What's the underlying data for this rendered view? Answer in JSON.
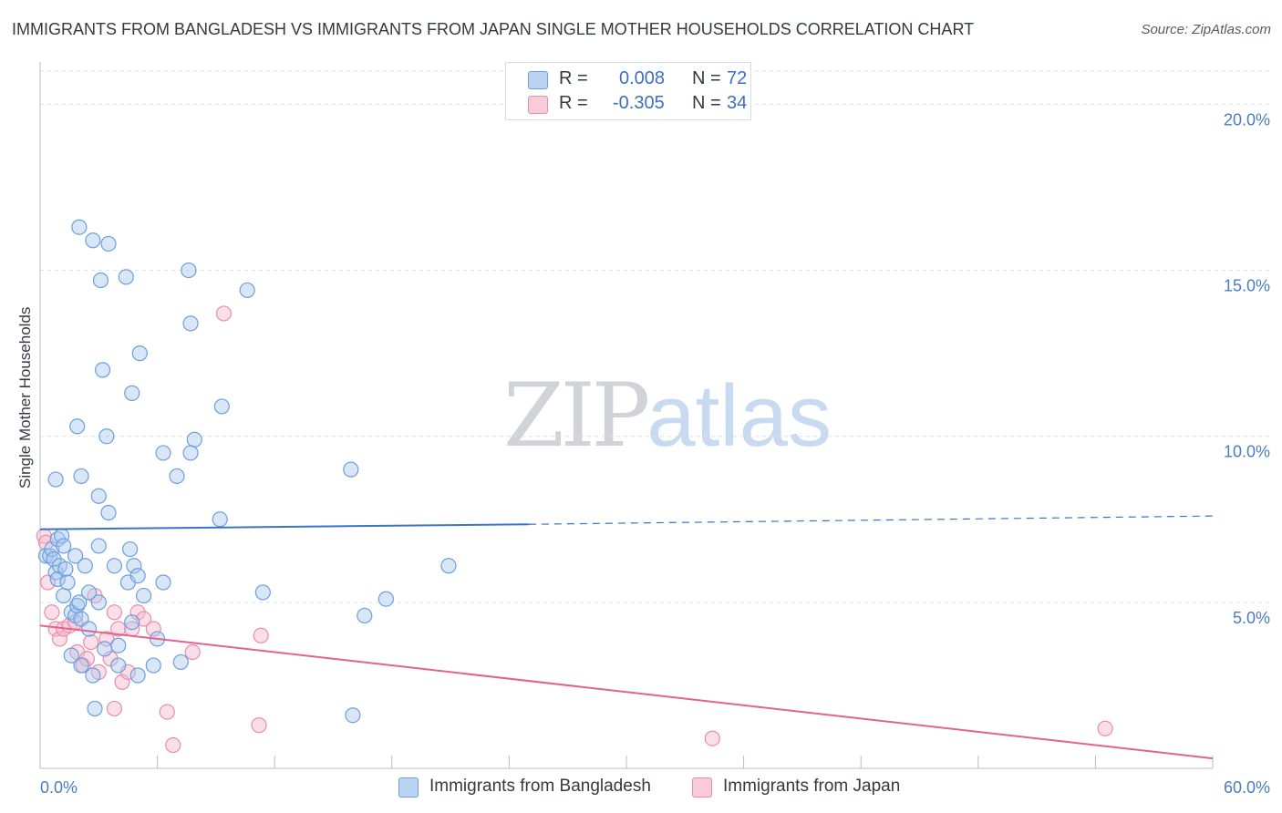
{
  "title": "IMMIGRANTS FROM BANGLADESH VS IMMIGRANTS FROM JAPAN SINGLE MOTHER HOUSEHOLDS CORRELATION CHART",
  "source": "Source: ZipAtlas.com",
  "watermark": {
    "zip": "ZIP",
    "atlas": "atlas"
  },
  "colors": {
    "bangladesh_fill": "#a9c8ef",
    "bangladesh_stroke": "#6d9fdc",
    "bangladesh_line": "#3a74c9",
    "japan_fill": "#f6b8cb",
    "japan_stroke": "#ec8cab",
    "japan_line": "#e4638e",
    "grid": "#dde0e5",
    "tick_text": "#4a7cc4"
  },
  "legend": {
    "rows": [
      {
        "r_label": "R =",
        "r_value": "0.008",
        "n_label": "N =",
        "n_value": "72"
      },
      {
        "r_label": "R =",
        "r_value": "-0.305",
        "n_label": "N =",
        "n_value": "34"
      }
    ]
  },
  "bottom_legend": {
    "bangladesh": "Immigrants from Bangladesh",
    "japan": "Immigrants from Japan"
  },
  "chart_data": {
    "type": "scatter",
    "title": "IMMIGRANTS FROM BANGLADESH VS IMMIGRANTS FROM JAPAN SINGLE MOTHER HOUSEHOLDS CORRELATION CHART",
    "xlabel": "",
    "ylabel": "Single Mother Households",
    "xlim": [
      0,
      60
    ],
    "ylim": [
      0,
      21
    ],
    "x_ticks": [
      0,
      6,
      12,
      18,
      24,
      30,
      36,
      42,
      48,
      54,
      60
    ],
    "x_tick_labels": [
      "0.0%",
      "60.0%"
    ],
    "y_ticks": [
      5,
      10,
      15,
      20
    ],
    "y_tick_labels": [
      "5.0%",
      "10.0%",
      "15.0%",
      "20.0%"
    ],
    "grid": true,
    "legend_position": "top-center",
    "series": [
      {
        "name": "Immigrants from Bangladesh",
        "R": 0.008,
        "N": 72,
        "trend": {
          "x0": 0,
          "y0": 7.2,
          "x1": 25,
          "y1": 7.35,
          "dashed_to_x": 60,
          "dashed_to_y": 7.6
        },
        "points": [
          [
            0.3,
            6.4
          ],
          [
            0.5,
            6.4
          ],
          [
            0.6,
            6.6
          ],
          [
            0.7,
            6.3
          ],
          [
            0.8,
            5.9
          ],
          [
            0.9,
            5.7
          ],
          [
            0.8,
            8.7
          ],
          [
            0.9,
            6.9
          ],
          [
            1.0,
            6.1
          ],
          [
            1.1,
            7.0
          ],
          [
            1.2,
            6.7
          ],
          [
            1.2,
            5.2
          ],
          [
            1.3,
            6.0
          ],
          [
            1.4,
            5.6
          ],
          [
            1.6,
            4.7
          ],
          [
            1.6,
            3.4
          ],
          [
            1.8,
            4.6
          ],
          [
            1.8,
            6.4
          ],
          [
            1.9,
            4.9
          ],
          [
            2.0,
            5.0
          ],
          [
            2.1,
            4.5
          ],
          [
            2.1,
            3.1
          ],
          [
            2.3,
            6.1
          ],
          [
            2.5,
            4.2
          ],
          [
            2.7,
            2.8
          ],
          [
            2.8,
            1.8
          ],
          [
            3.0,
            6.7
          ],
          [
            3.3,
            3.6
          ],
          [
            3.8,
            6.1
          ],
          [
            4.0,
            3.1
          ],
          [
            4.0,
            3.7
          ],
          [
            4.5,
            5.6
          ],
          [
            4.6,
            6.6
          ],
          [
            4.7,
            4.4
          ],
          [
            4.8,
            6.1
          ],
          [
            5.0,
            5.8
          ],
          [
            5.0,
            2.8
          ],
          [
            5.3,
            5.2
          ],
          [
            5.8,
            3.1
          ],
          [
            6.0,
            3.9
          ],
          [
            6.3,
            5.6
          ],
          [
            2.0,
            16.3
          ],
          [
            2.7,
            15.9
          ],
          [
            3.5,
            15.8
          ],
          [
            3.1,
            14.7
          ],
          [
            4.4,
            14.8
          ],
          [
            7.6,
            15.0
          ],
          [
            10.6,
            14.4
          ],
          [
            7.7,
            13.4
          ],
          [
            5.1,
            12.5
          ],
          [
            3.2,
            12.0
          ],
          [
            4.7,
            11.3
          ],
          [
            9.3,
            10.9
          ],
          [
            1.9,
            10.3
          ],
          [
            3.4,
            10.0
          ],
          [
            7.9,
            9.9
          ],
          [
            6.3,
            9.5
          ],
          [
            7.7,
            9.5
          ],
          [
            7.0,
            8.8
          ],
          [
            2.1,
            8.8
          ],
          [
            3.0,
            8.2
          ],
          [
            3.5,
            7.7
          ],
          [
            9.2,
            7.5
          ],
          [
            15.9,
            9.0
          ],
          [
            11.4,
            5.3
          ],
          [
            17.7,
            5.1
          ],
          [
            16.6,
            4.6
          ],
          [
            20.9,
            6.1
          ],
          [
            16.0,
            1.6
          ],
          [
            7.2,
            3.2
          ],
          [
            3.0,
            5.0
          ],
          [
            2.5,
            5.3
          ]
        ]
      },
      {
        "name": "Immigrants from Japan",
        "R": -0.305,
        "N": 34,
        "trend": {
          "x0": 0,
          "y0": 4.3,
          "x1": 60,
          "y1": 0.3
        },
        "points": [
          [
            0.2,
            7.0
          ],
          [
            0.3,
            6.8
          ],
          [
            0.4,
            5.6
          ],
          [
            0.6,
            4.7
          ],
          [
            0.8,
            4.2
          ],
          [
            1.0,
            3.9
          ],
          [
            1.2,
            4.2
          ],
          [
            1.5,
            4.3
          ],
          [
            1.8,
            4.4
          ],
          [
            1.9,
            3.5
          ],
          [
            2.2,
            3.1
          ],
          [
            2.4,
            3.3
          ],
          [
            2.6,
            3.8
          ],
          [
            2.8,
            5.2
          ],
          [
            3.0,
            2.9
          ],
          [
            3.4,
            3.9
          ],
          [
            3.6,
            3.3
          ],
          [
            3.8,
            4.7
          ],
          [
            4.0,
            4.2
          ],
          [
            4.2,
            2.6
          ],
          [
            4.5,
            2.9
          ],
          [
            4.7,
            4.2
          ],
          [
            5.0,
            4.7
          ],
          [
            5.3,
            4.5
          ],
          [
            5.8,
            4.2
          ],
          [
            6.5,
            1.7
          ],
          [
            6.8,
            0.7
          ],
          [
            7.8,
            3.5
          ],
          [
            9.4,
            13.7
          ],
          [
            11.3,
            4.0
          ],
          [
            11.2,
            1.3
          ],
          [
            3.8,
            1.8
          ],
          [
            34.4,
            0.9
          ],
          [
            54.5,
            1.2
          ]
        ]
      }
    ]
  }
}
